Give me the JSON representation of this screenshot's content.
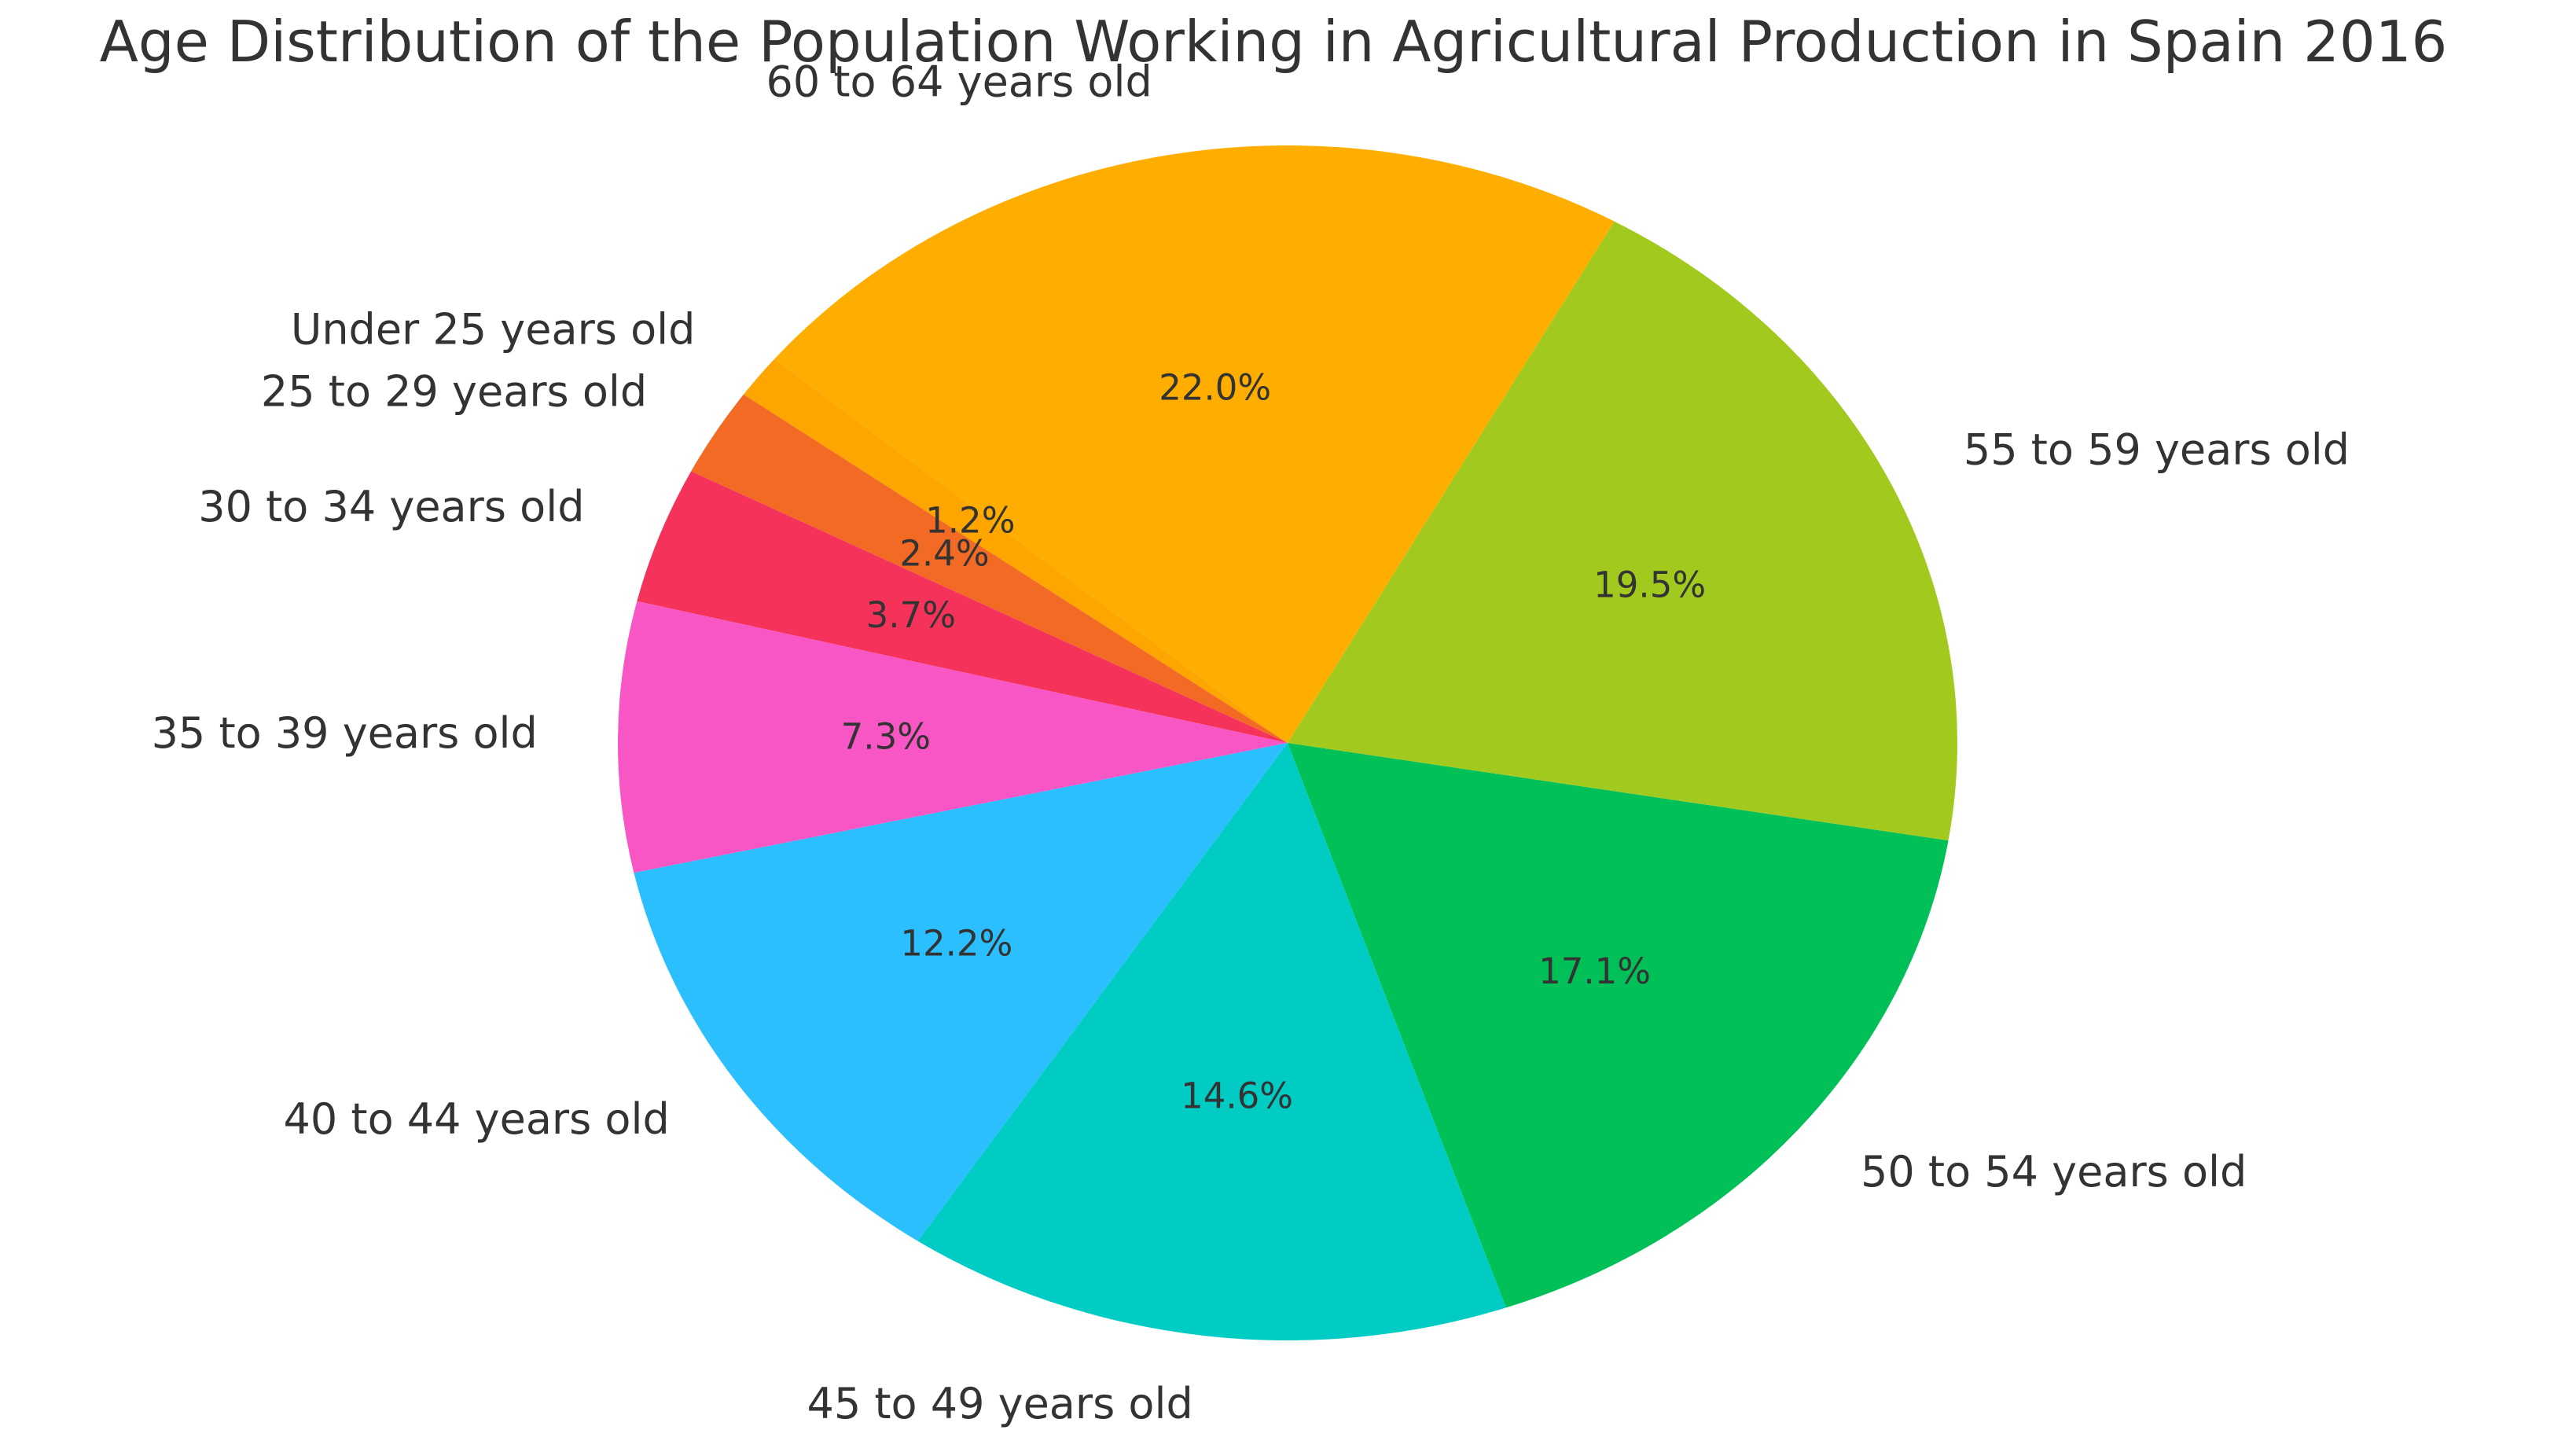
{
  "chart_data": {
    "type": "pie",
    "title": "Age Distribution of the Population Working in Agricultural Production in Spain 2016",
    "categories": [
      "Under 25 years old",
      "25 to 29 years old",
      "30 to 34 years old",
      "35 to 39 years old",
      "40 to 44 years old",
      "45 to 49 years old",
      "50 to 54 years old",
      "55 to 59 years old",
      "60 to 64 years old"
    ],
    "values": [
      1.2,
      2.4,
      3.7,
      7.3,
      12.2,
      14.6,
      17.1,
      19.5,
      22.0
    ],
    "value_labels": [
      "1.2%",
      "2.4%",
      "3.7%",
      "7.3%",
      "12.2%",
      "14.6%",
      "17.1%",
      "19.5%",
      "22.0%"
    ],
    "colors": [
      "#FFA500",
      "#F26A24",
      "#F5335A",
      "#F756C4",
      "#2BBFFF",
      "#00CCC4",
      "#00C057",
      "#A2CA1E",
      "#FFAE00"
    ],
    "start_angle_deg": 140,
    "direction": "counterclockwise",
    "legend": "none"
  }
}
